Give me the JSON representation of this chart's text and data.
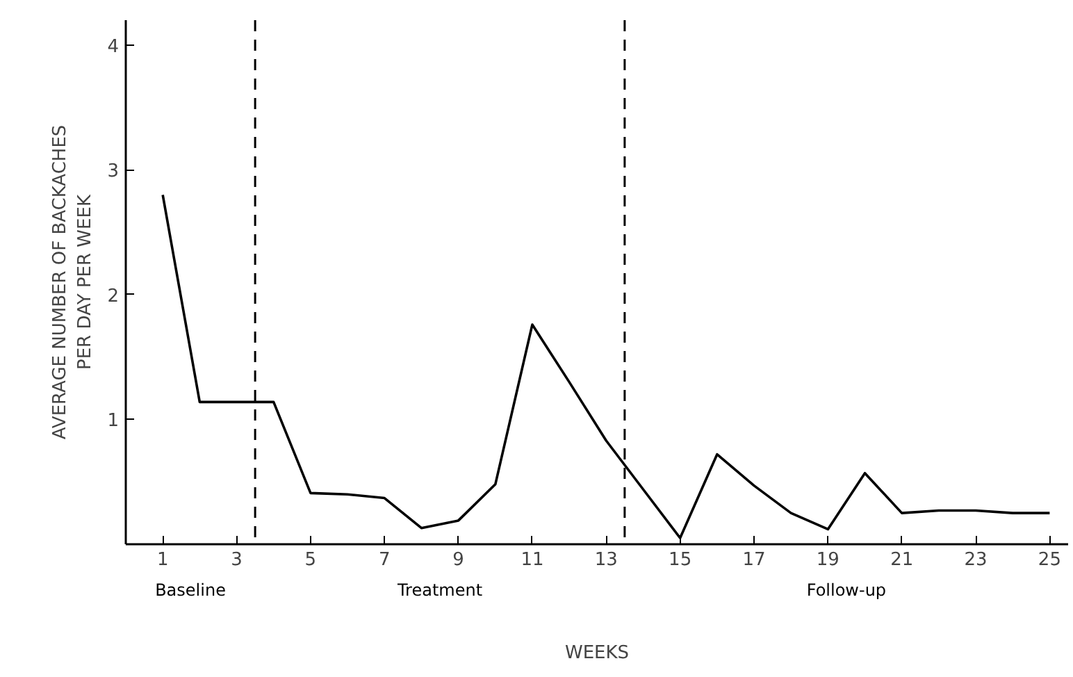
{
  "chart_data": {
    "type": "line",
    "xlabel": "WEEKS",
    "ylabel": "AVERAGE NUMBER OF BACKACHES\nPER DAY PER WEEK",
    "x": [
      1,
      2,
      3,
      4,
      5,
      6,
      7,
      8,
      9,
      10,
      11,
      12,
      13,
      14,
      15,
      16,
      17,
      18,
      19,
      20,
      21,
      22,
      23,
      24,
      25
    ],
    "values": [
      2.8,
      1.14,
      1.14,
      1.14,
      0.41,
      0.4,
      0.37,
      0.13,
      0.19,
      0.48,
      1.76,
      1.3,
      0.83,
      0.44,
      0.05,
      0.72,
      0.47,
      0.25,
      0.12,
      0.57,
      0.25,
      0.27,
      0.27,
      0.25,
      0.25
    ],
    "color": "#000000",
    "xlim": [
      0,
      25.5
    ],
    "ylim": [
      0,
      4.2
    ],
    "xticks": [
      1,
      3,
      5,
      7,
      9,
      11,
      13,
      15,
      17,
      19,
      21,
      23,
      25
    ],
    "yticks": [
      1,
      2,
      3,
      4
    ],
    "ref_lines": [
      {
        "axis": "x",
        "value": 3.5,
        "line_style": "dashed",
        "color": "#000000"
      },
      {
        "axis": "x",
        "value": 13.5,
        "line_style": "dashed",
        "color": "#000000"
      }
    ],
    "annotations": [
      "Baseline",
      "Treatment",
      "Follow-up"
    ],
    "grid": false,
    "marker": "none",
    "line_style": "solid"
  }
}
